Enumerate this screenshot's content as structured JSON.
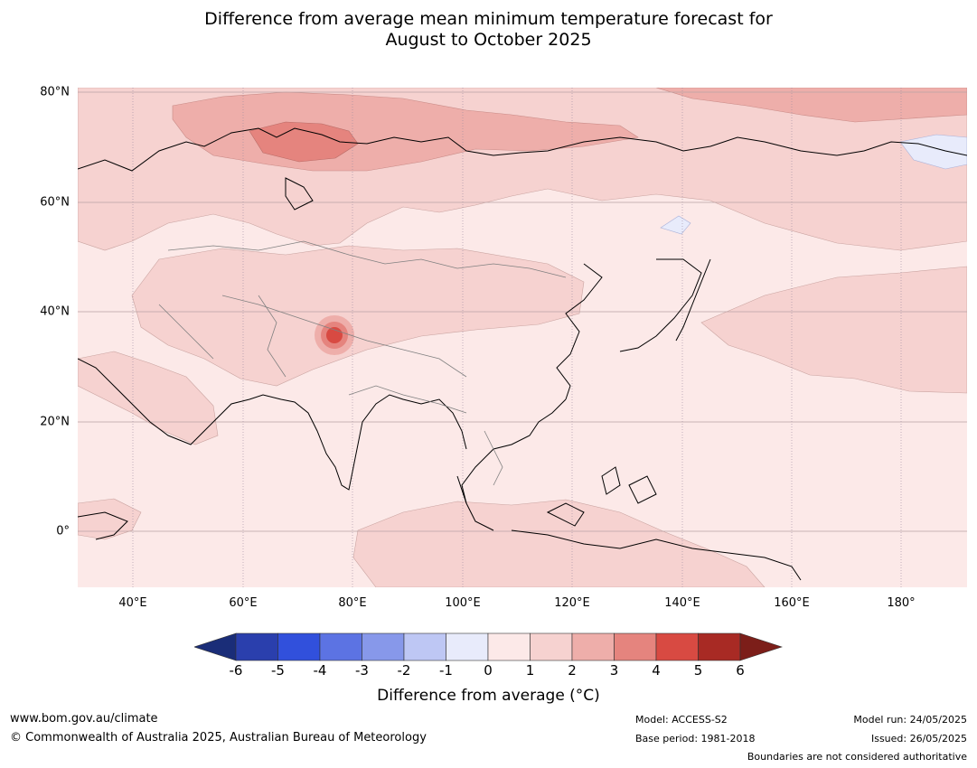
{
  "title_line1": "Difference from average mean minimum temperature forecast for",
  "title_line2": "August to October 2025",
  "map": {
    "lat_ticks": [
      "80°N",
      "60°N",
      "40°N",
      "20°N",
      "0°"
    ],
    "lon_ticks": [
      "40°E",
      "60°E",
      "80°E",
      "100°E",
      "120°E",
      "140°E",
      "160°E",
      "180°"
    ]
  },
  "colorbar": {
    "title": "Difference from average ($^\\circ$C)",
    "title_display": "Difference from average (°C)",
    "ticks": [
      "-6",
      "-5",
      "-4",
      "-3",
      "-2",
      "-1",
      "0",
      "1",
      "2",
      "3",
      "4",
      "5",
      "6"
    ],
    "colors": {
      "below_min": "#1a2d78",
      "bins": [
        "#2a3fad",
        "#3150dc",
        "#5c73e3",
        "#8798ea",
        "#bec7f4",
        "#e8ebfb",
        "#fce9e8",
        "#f6d2d0",
        "#eeaeaa",
        "#e5847e",
        "#d84a42",
        "#a82a24"
      ],
      "above_max": "#7c1e19"
    }
  },
  "footer": {
    "website": "www.bom.gov.au/climate",
    "copyright": "© Commonwealth of Australia 2025, Australian Bureau of Meteorology",
    "model": "Model: ACCESS-S2",
    "base_period": "Base period: 1981-2018",
    "model_run": "Model run: 24/05/2025",
    "issued": "Issued: 26/05/2025",
    "disclaimer": "Boundaries are not considered authoritative"
  }
}
